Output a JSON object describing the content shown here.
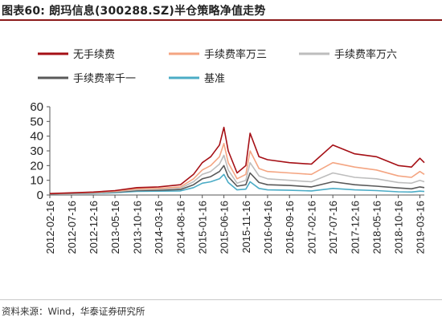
{
  "header": {
    "title": "图表60:   朗玛信息(300288.SZ)半仓策略净值走势"
  },
  "footer": {
    "source": "资料来源：Wind，华泰证券研究所"
  },
  "chart_data": {
    "type": "line",
    "title": "",
    "xlabel": "",
    "ylabel": "",
    "ylim": [
      0,
      60
    ],
    "yticks": [
      "0",
      "10",
      "20",
      "30",
      "40",
      "50",
      "60"
    ],
    "xticks": [
      "2012-02-16",
      "2012-07-16",
      "2012-12-16",
      "2013-05-16",
      "2013-10-16",
      "2014-03-16",
      "2014-08-16",
      "2015-01-16",
      "2015-06-16",
      "2015-11-16",
      "2016-04-16",
      "2016-09-16",
      "2017-02-16",
      "2017-07-16",
      "2017-12-16",
      "2018-05-16",
      "2018-10-16",
      "2019-03-16"
    ],
    "legend_position": "top",
    "grid": false,
    "x": [
      "2012-02-16",
      "2012-07-16",
      "2012-12-16",
      "2013-05-16",
      "2013-10-16",
      "2014-03-16",
      "2014-08-16",
      "2014-11-16",
      "2015-01-16",
      "2015-03-16",
      "2015-05-16",
      "2015-06-16",
      "2015-07-16",
      "2015-09-16",
      "2015-11-16",
      "2015-12-16",
      "2016-02-16",
      "2016-04-16",
      "2016-09-16",
      "2017-02-16",
      "2017-07-16",
      "2017-12-16",
      "2018-05-16",
      "2018-10-16",
      "2019-01-16",
      "2019-03-16",
      "2019-04-16"
    ],
    "series": [
      {
        "name": "无手续费",
        "color": "#a50f15",
        "values": [
          1.0,
          1.5,
          2.0,
          3.0,
          5.0,
          5.5,
          7.0,
          14.0,
          22.0,
          26.0,
          34.0,
          46.0,
          30.0,
          15.0,
          20.0,
          42.0,
          26.0,
          24.0,
          22.0,
          21.0,
          34.0,
          28.0,
          26.0,
          20.0,
          19.0,
          25.0,
          22.0
        ]
      },
      {
        "name": "手续费率万三",
        "color": "#f4a582",
        "values": [
          0.9,
          1.3,
          1.8,
          2.6,
          4.2,
          4.5,
          5.5,
          11.0,
          17.0,
          20.0,
          26.0,
          35.0,
          22.0,
          11.0,
          14.0,
          30.0,
          18.0,
          16.0,
          15.0,
          14.0,
          22.0,
          19.0,
          17.0,
          13.0,
          12.0,
          16.0,
          14.0
        ]
      },
      {
        "name": "手续费率万六",
        "color": "#bdbdbd",
        "values": [
          0.85,
          1.2,
          1.6,
          2.3,
          3.6,
          3.9,
          4.6,
          9.0,
          14.0,
          16.0,
          21.0,
          27.0,
          17.0,
          8.0,
          10.0,
          22.0,
          13.0,
          11.0,
          10.0,
          9.0,
          15.0,
          12.0,
          11.0,
          8.5,
          8.0,
          10.0,
          9.0
        ]
      },
      {
        "name": "手续费率千一",
        "color": "#595959",
        "values": [
          0.8,
          1.1,
          1.4,
          2.0,
          3.0,
          3.2,
          3.7,
          7.0,
          11.0,
          12.5,
          16.0,
          20.0,
          12.5,
          6.0,
          7.0,
          15.0,
          8.5,
          7.0,
          6.5,
          5.5,
          9.0,
          7.0,
          6.0,
          4.8,
          4.2,
          5.5,
          5.0
        ]
      },
      {
        "name": "基准",
        "color": "#4bacc6",
        "values": [
          0.8,
          1.0,
          1.2,
          1.6,
          2.5,
          2.6,
          2.8,
          5.0,
          8.0,
          9.0,
          11.0,
          14.0,
          8.5,
          3.5,
          4.0,
          9.0,
          4.5,
          3.5,
          3.2,
          2.8,
          4.5,
          3.5,
          3.0,
          2.2,
          2.0,
          2.6,
          2.4
        ]
      }
    ]
  }
}
